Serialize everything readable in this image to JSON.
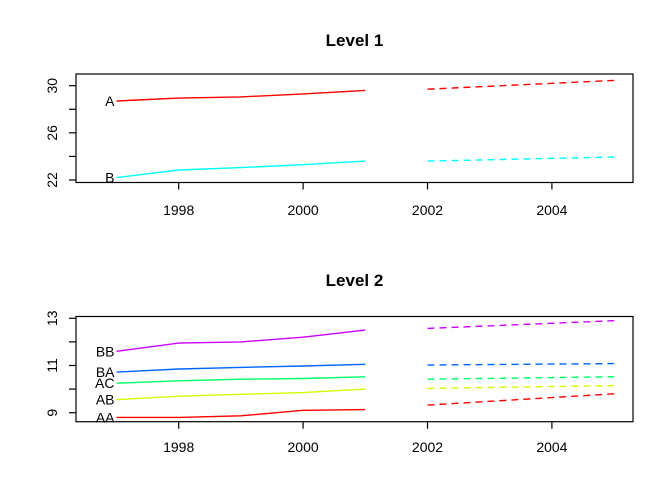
{
  "figure": {
    "background_color": "#FFFFFF",
    "text_color": "#000000"
  },
  "chart_data": [
    {
      "type": "line",
      "title": "Level 1",
      "xlabel": "",
      "ylabel": "",
      "grid": false,
      "legend_position": "inline-left-labels",
      "x_ticks": [
        1998,
        2000,
        2002,
        2004
      ],
      "y_ticks_all": [
        22,
        24,
        26,
        28,
        30
      ],
      "y_ticks_labeled": [
        22,
        26,
        30
      ],
      "xlim": [
        1996.35,
        2005.3
      ],
      "ylim": [
        21.8,
        31.0
      ],
      "series": [
        {
          "label": "A",
          "color": "#FF0000",
          "solid": [
            [
              1997,
              28.7
            ],
            [
              1998,
              28.95
            ],
            [
              1999,
              29.05
            ],
            [
              2000,
              29.3
            ],
            [
              2001,
              29.6
            ]
          ],
          "dashed": [
            [
              2002,
              29.7
            ],
            [
              2005,
              30.45
            ]
          ]
        },
        {
          "label": "B",
          "color": "#00FFFF",
          "solid": [
            [
              1997,
              22.2
            ],
            [
              1998,
              22.85
            ],
            [
              1999,
              23.05
            ],
            [
              2000,
              23.3
            ],
            [
              2001,
              23.6
            ]
          ],
          "dashed": [
            [
              2002,
              23.6
            ],
            [
              2005,
              23.95
            ]
          ]
        }
      ]
    },
    {
      "type": "line",
      "title": "Level 2",
      "xlabel": "",
      "ylabel": "",
      "grid": false,
      "legend_position": "inline-left-labels",
      "x_ticks": [
        1998,
        2000,
        2002,
        2004
      ],
      "y_ticks_all": [
        9,
        10,
        11,
        12,
        13
      ],
      "y_ticks_labeled": [
        9,
        11,
        13
      ],
      "xlim": [
        1996.35,
        2005.3
      ],
      "ylim": [
        8.6,
        13.1
      ],
      "series": [
        {
          "label": "BB",
          "color": "#CC00FF",
          "solid": [
            [
              1997,
              11.6
            ],
            [
              1998,
              11.95
            ],
            [
              1999,
              12.0
            ],
            [
              2000,
              12.2
            ],
            [
              2001,
              12.5
            ]
          ],
          "dashed": [
            [
              2002,
              12.57
            ],
            [
              2005,
              12.9
            ]
          ]
        },
        {
          "label": "BA",
          "color": "#0066FF",
          "solid": [
            [
              1997,
              10.72
            ],
            [
              1998,
              10.85
            ],
            [
              1999,
              10.92
            ],
            [
              2000,
              10.98
            ],
            [
              2001,
              11.05
            ]
          ],
          "dashed": [
            [
              2002,
              11.02
            ],
            [
              2005,
              11.08
            ]
          ]
        },
        {
          "label": "AC",
          "color": "#00FF66",
          "solid": [
            [
              1997,
              10.25
            ],
            [
              1998,
              10.35
            ],
            [
              1999,
              10.42
            ],
            [
              2000,
              10.45
            ],
            [
              2001,
              10.52
            ]
          ],
          "dashed": [
            [
              2002,
              10.42
            ],
            [
              2005,
              10.52
            ]
          ]
        },
        {
          "label": "AB",
          "color": "#CCFF00",
          "solid": [
            [
              1997,
              9.55
            ],
            [
              1998,
              9.7
            ],
            [
              1999,
              9.78
            ],
            [
              2000,
              9.85
            ],
            [
              2001,
              10.0
            ]
          ],
          "dashed": [
            [
              2002,
              10.03
            ],
            [
              2005,
              10.15
            ]
          ]
        },
        {
          "label": "AA",
          "color": "#FF0000",
          "solid": [
            [
              1997,
              8.8
            ],
            [
              1998,
              8.8
            ],
            [
              1999,
              8.87
            ],
            [
              2000,
              9.1
            ],
            [
              2001,
              9.13
            ]
          ],
          "dashed": [
            [
              2002,
              9.32
            ],
            [
              2005,
              9.8
            ]
          ]
        }
      ]
    }
  ]
}
